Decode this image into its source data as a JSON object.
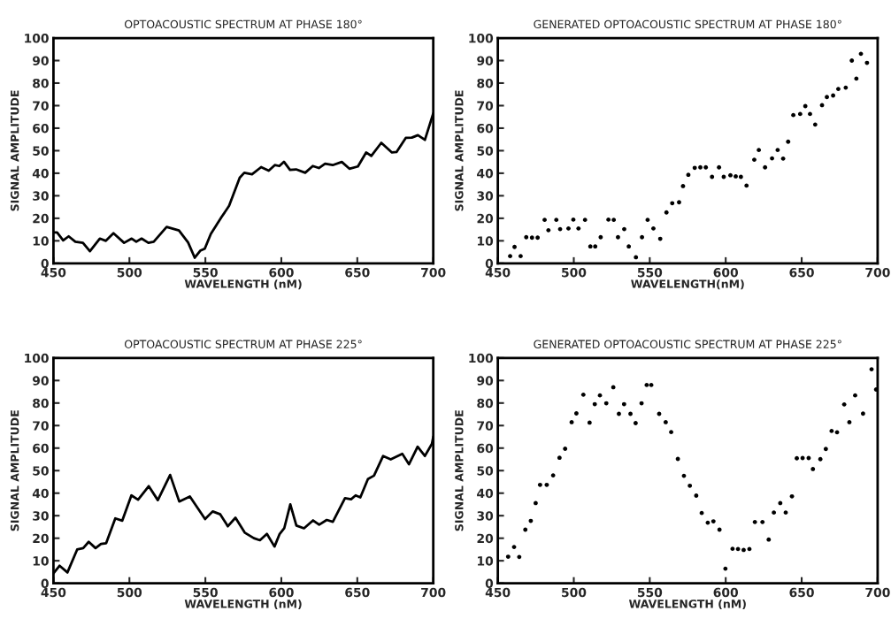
{
  "chart_data": [
    {
      "type": "line",
      "title": "OPTOACOUSTIC SPECTRUM AT PHASE 180°",
      "xlabel": "WAVELENGTH (nM)",
      "ylabel": "SIGNAL AMPLITUDE",
      "xlim": [
        450,
        700
      ],
      "ylim": [
        0,
        100
      ],
      "xticks": [
        450,
        500,
        550,
        600,
        650,
        700
      ],
      "yticks": [
        0,
        10,
        20,
        30,
        40,
        50,
        60,
        70,
        80,
        90,
        100
      ],
      "grid": false,
      "marker": "none",
      "line_style": "solid",
      "series": [
        {
          "color": "#000000",
          "x": [
            450,
            452.4,
            456.4,
            460,
            464.4,
            469.4,
            474,
            480.5,
            484.5,
            489.5,
            496.5,
            501.5,
            504.5,
            508,
            512.5,
            516,
            524.5,
            532.6,
            538.6,
            543,
            546.6,
            549.6,
            553.6,
            560.6,
            565.6,
            572.6,
            575.6,
            580.7,
            586.7,
            591.7,
            595.7,
            598.7,
            601.7,
            605.7,
            609.7,
            615.7,
            620.7,
            624.7,
            628.8,
            633.8,
            639.8,
            644.8,
            650.4,
            655.8,
            659.2,
            665.8,
            672.8,
            675.8,
            681.9,
            685.9,
            689.9,
            694.5,
            700
          ],
          "values": [
            13.7,
            13.7,
            10.2,
            12,
            9.6,
            9.1,
            5.4,
            11,
            10,
            13.4,
            9.1,
            11,
            9.6,
            11,
            9.1,
            9.6,
            16.2,
            14.6,
            9.3,
            2.5,
            5.6,
            6.5,
            13.1,
            20.5,
            25.5,
            38,
            40.2,
            39.5,
            42.7,
            41.1,
            43.6,
            43.2,
            45.1,
            41.5,
            41.7,
            40.2,
            43.2,
            42.3,
            44.2,
            43.6,
            45,
            42,
            43,
            49.2,
            47.7,
            53.5,
            49.2,
            49.4,
            55.7,
            55.8,
            56.9,
            54.8,
            66.6
          ]
        }
      ]
    },
    {
      "type": "scatter",
      "title": "GENERATED OPTOACOUSTIC SPECTRUM AT PHASE 180°",
      "xlabel": "WAVELENGTH(nM)",
      "ylabel": "SIGNAL AMPLITUDE",
      "xlim": [
        450,
        700
      ],
      "ylim": [
        0,
        100
      ],
      "xticks": [
        450,
        500,
        550,
        600,
        650,
        700
      ],
      "yticks": [
        0,
        10,
        20,
        30,
        40,
        50,
        60,
        70,
        80,
        90,
        100
      ],
      "grid": false,
      "marker": "circle",
      "series": [
        {
          "color": "#000000",
          "x": [
            458.1,
            461,
            465,
            468.7,
            472.5,
            476.2,
            480.8,
            483.3,
            488.5,
            491,
            496.5,
            499.7,
            503.1,
            507.4,
            510.9,
            514.1,
            517.7,
            522.8,
            526.3,
            529.1,
            533.2,
            536.2,
            540.9,
            544.9,
            548.6,
            552.4,
            556.9,
            561,
            564.8,
            569.3,
            571.9,
            575.4,
            579.6,
            583.3,
            586.9,
            591,
            595.6,
            598.7,
            603.1,
            606.6,
            610,
            613.7,
            618.8,
            621.8,
            625.9,
            630.5,
            634.2,
            637.8,
            641.1,
            644.5,
            649,
            652.4,
            655.5,
            658.9,
            663.4,
            666.6,
            670.7,
            674.1,
            679,
            683,
            686,
            689,
            693
          ],
          "values": [
            3.2,
            7.3,
            3.2,
            11.6,
            11.4,
            11.4,
            19.3,
            14.7,
            19.3,
            15.2,
            15.5,
            19.4,
            15.5,
            19.3,
            7.5,
            7.5,
            11.6,
            19.4,
            19.3,
            11.6,
            15.2,
            7.5,
            2.7,
            11.6,
            19.3,
            15.5,
            10.9,
            22.6,
            26.7,
            27.1,
            34.3,
            39.3,
            42.4,
            42.6,
            42.6,
            38.4,
            42.6,
            38.4,
            39.1,
            38.6,
            38.4,
            34.5,
            46,
            50.3,
            42.6,
            46.6,
            50.3,
            46.5,
            54,
            65.8,
            66.3,
            69.8,
            66.3,
            61.6,
            70.2,
            73.8,
            74.5,
            77.4,
            78,
            90,
            82,
            93,
            89
          ]
        }
      ]
    },
    {
      "type": "line",
      "title": "OPTOACOUSTIC SPECTRUM AT PHASE 225°",
      "xlabel": "WAVELENGTH (nM)",
      "ylabel": "SIGNAL AMPLITUDE",
      "xlim": [
        450,
        700
      ],
      "ylim": [
        0,
        100
      ],
      "xticks": [
        450,
        500,
        550,
        600,
        650,
        700
      ],
      "yticks": [
        0,
        10,
        20,
        30,
        40,
        50,
        60,
        70,
        80,
        90,
        100
      ],
      "grid": false,
      "marker": "none",
      "line_style": "solid",
      "series": [
        {
          "color": "#000000",
          "x": [
            450,
            454,
            459.2,
            465.6,
            469.6,
            473.2,
            477.7,
            481.3,
            484.7,
            490.7,
            495.3,
            501.3,
            505.7,
            512.7,
            518.7,
            526.8,
            532.8,
            539.8,
            549.8,
            554.8,
            559.8,
            564.8,
            569.8,
            575.9,
            581.9,
            585.9,
            590.5,
            595.5,
            598.9,
            601.9,
            605.9,
            609.9,
            614.9,
            620.9,
            624.9,
            629.9,
            633.9,
            641.9,
            645.9,
            648.9,
            652,
            657,
            661,
            667,
            672,
            679.6,
            684,
            689.7,
            694.5,
            699.1,
            700
          ],
          "values": [
            4.4,
            7.8,
            4.8,
            15,
            15.6,
            18.4,
            15.6,
            17.5,
            17.8,
            28.8,
            27.8,
            39,
            37.1,
            43.1,
            36.9,
            48.1,
            36.3,
            38.5,
            28.5,
            31.9,
            30.6,
            25.3,
            29.1,
            22.5,
            20,
            19.1,
            21.9,
            16.3,
            21.9,
            24.4,
            35,
            25.6,
            24.4,
            27.9,
            26,
            28.1,
            27.3,
            37.8,
            37.3,
            39,
            38.1,
            46.3,
            47.8,
            56.5,
            55,
            57.5,
            52.8,
            60.6,
            56.5,
            61.9,
            65
          ]
        }
      ]
    },
    {
      "type": "scatter",
      "title": "GENERATED OPTOACOUSTIC SPECTRUM AT PHASE 225°",
      "xlabel": "WAVELENGTH (nM)",
      "ylabel": "SIGNAL AMPLITUDE",
      "xlim": [
        450,
        700
      ],
      "ylim": [
        0,
        100
      ],
      "xticks": [
        450,
        500,
        550,
        600,
        650,
        700
      ],
      "yticks": [
        0,
        10,
        20,
        30,
        40,
        50,
        60,
        70,
        80,
        90,
        100
      ],
      "grid": false,
      "marker": "circle",
      "series": [
        {
          "color": "#000000",
          "x": [
            456.8,
            460.7,
            464.1,
            468.1,
            471.7,
            474.9,
            477.8,
            482.2,
            486.4,
            490.6,
            494.3,
            498.6,
            501.7,
            506.3,
            510.4,
            513.8,
            517.2,
            521.4,
            526,
            529.7,
            533.1,
            537.3,
            540.7,
            544.6,
            548,
            551,
            556.2,
            560.5,
            564.1,
            568.5,
            572.5,
            576.4,
            580.6,
            584.2,
            588.2,
            591.9,
            595.9,
            599.8,
            604.5,
            608.1,
            611.8,
            615.6,
            619.2,
            624.2,
            628.3,
            631.7,
            635.9,
            639.5,
            643.6,
            646.8,
            650.6,
            654.6,
            657.4,
            662.3,
            665.9,
            669.7,
            673.3,
            678,
            681.4,
            685.2,
            690.4,
            696,
            699
          ],
          "values": [
            11.8,
            16.1,
            11.7,
            23.8,
            27.7,
            35.6,
            43.7,
            43.7,
            47.9,
            55.7,
            59.7,
            71.5,
            75.4,
            83.7,
            71.3,
            79.5,
            83.4,
            79.9,
            87,
            75.2,
            79.5,
            75.2,
            71.1,
            79.9,
            88,
            88,
            75.2,
            71.5,
            67.1,
            55.2,
            47.7,
            43.3,
            38.9,
            31.2,
            26.9,
            27.5,
            23.8,
            6.5,
            15.3,
            15.2,
            14.8,
            15.2,
            27.2,
            27.2,
            19.4,
            31.4,
            35.6,
            31.4,
            38.6,
            55.5,
            55.6,
            55.6,
            50.7,
            55.1,
            59.6,
            67.6,
            67,
            79.4,
            71.5,
            83.4,
            75.3,
            95,
            86
          ]
        }
      ]
    }
  ]
}
